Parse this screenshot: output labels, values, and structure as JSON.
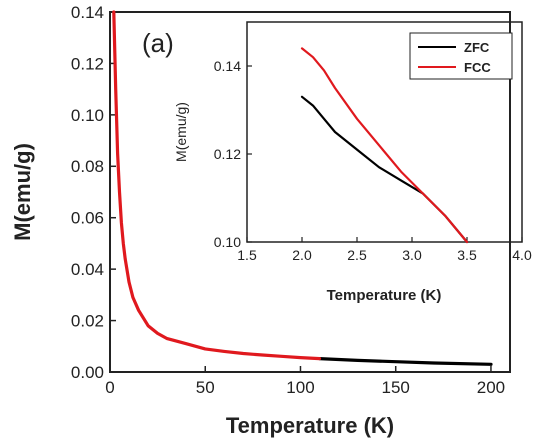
{
  "chart_data": [
    {
      "type": "line",
      "panel_label": "(a)",
      "xlabel": "Temperature (K)",
      "ylabel": "M(emu/g)",
      "xlim": [
        0,
        210
      ],
      "ylim": [
        0.0,
        0.14
      ],
      "xticks": [
        0,
        50,
        100,
        150,
        200
      ],
      "yticks": [
        0.0,
        0.02,
        0.04,
        0.06,
        0.08,
        0.1,
        0.12,
        0.14
      ],
      "grid": false,
      "series": [
        {
          "name": "ZFC",
          "color": "#000000",
          "x": [
            110,
            130,
            150,
            170,
            200
          ],
          "y": [
            0.0052,
            0.0045,
            0.004,
            0.0035,
            0.003
          ]
        },
        {
          "name": "FCC",
          "color": "#e0191e",
          "x": [
            2,
            3,
            4,
            5,
            6,
            7,
            8,
            10,
            12,
            15,
            20,
            25,
            30,
            40,
            50,
            60,
            70,
            80,
            90,
            100,
            110
          ],
          "y": [
            0.144,
            0.11,
            0.085,
            0.07,
            0.058,
            0.05,
            0.044,
            0.035,
            0.029,
            0.024,
            0.018,
            0.015,
            0.013,
            0.011,
            0.009,
            0.008,
            0.0072,
            0.0066,
            0.0061,
            0.0056,
            0.0052
          ]
        }
      ]
    },
    {
      "type": "line",
      "role": "inset",
      "xlabel": "Temperature (K)",
      "ylabel": "M(emu/g)",
      "xlim": [
        1.5,
        4.0
      ],
      "ylim": [
        0.1,
        0.15
      ],
      "xticks": [
        1.5,
        2.0,
        2.5,
        3.0,
        3.5,
        4.0
      ],
      "yticks": [
        0.1,
        0.12,
        0.14
      ],
      "legend": "top-right",
      "series": [
        {
          "name": "ZFC",
          "color": "#000000",
          "x": [
            2.0,
            2.1,
            2.2,
            2.3,
            2.5,
            2.7,
            2.9,
            3.1,
            3.3,
            3.5
          ],
          "y": [
            0.133,
            0.131,
            0.128,
            0.125,
            0.121,
            0.117,
            0.114,
            0.111,
            0.106,
            0.1
          ]
        },
        {
          "name": "FCC",
          "color": "#e0191e",
          "x": [
            2.0,
            2.1,
            2.2,
            2.3,
            2.5,
            2.7,
            2.9,
            3.1,
            3.3,
            3.5
          ],
          "y": [
            0.144,
            0.142,
            0.139,
            0.135,
            0.128,
            0.122,
            0.116,
            0.111,
            0.106,
            0.1
          ]
        }
      ]
    }
  ]
}
